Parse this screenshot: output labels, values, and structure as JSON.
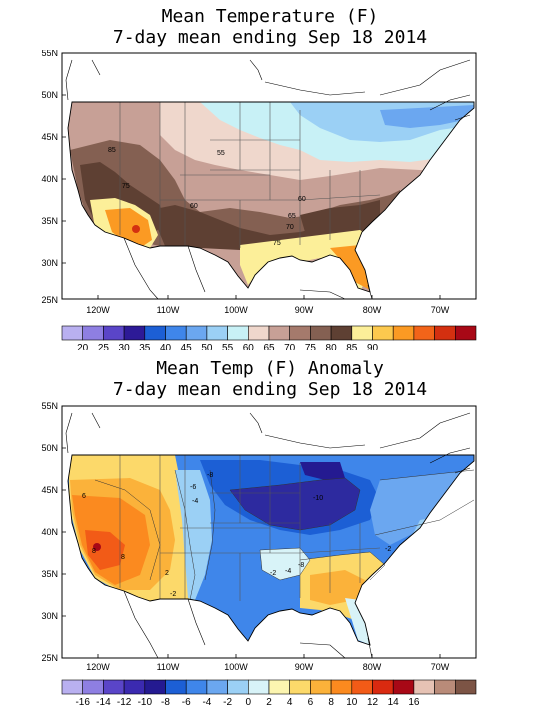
{
  "panels": [
    {
      "title_line1": "Mean Temperature (F)",
      "title_line2": "7-day mean ending Sep 18 2014",
      "lat_labels": [
        "55N",
        "50N",
        "45N",
        "40N",
        "35N",
        "30N",
        "25N"
      ],
      "lon_labels": [
        "120W",
        "110W",
        "100W",
        "90W",
        "80W",
        "70W"
      ],
      "colorbar": {
        "colors": [
          "#b9b0f0",
          "#8e7fe2",
          "#5a45c8",
          "#2d1a97",
          "#1c5fd5",
          "#3f86ea",
          "#6ba7f0",
          "#9bd0f5",
          "#c8f1f6",
          "#efd7cc",
          "#c7a096",
          "#a57a6c",
          "#846052",
          "#5e4033",
          "#fcef99",
          "#fcc94e",
          "#fb9a23",
          "#f26419",
          "#d43010",
          "#a80816"
        ],
        "labels": [
          "20",
          "25",
          "30",
          "35",
          "40",
          "45",
          "50",
          "55",
          "60",
          "65",
          "70",
          "75",
          "80",
          "85",
          "90"
        ]
      },
      "contour_labels": [
        "85",
        "55",
        "75",
        "60",
        "60",
        "65",
        "70",
        "75"
      ]
    },
    {
      "title_line1": "Mean Temp (F) Anomaly",
      "title_line2": "7-day mean ending Sep 18 2014",
      "lat_labels": [
        "55N",
        "50N",
        "45N",
        "40N",
        "35N",
        "30N",
        "25N"
      ],
      "lon_labels": [
        "120W",
        "110W",
        "100W",
        "90W",
        "80W",
        "70W"
      ],
      "colorbar": {
        "colors": [
          "#b9b0f0",
          "#8e7fe2",
          "#5a45c8",
          "#3b2ab0",
          "#241a91",
          "#1c5fd5",
          "#3f86ea",
          "#6ba7f0",
          "#9bd0f5",
          "#d8f3f8",
          "#fcf5b0",
          "#fcd96a",
          "#fbb23a",
          "#fb8a1f",
          "#f25b17",
          "#d92a10",
          "#a80816",
          "#e6c2b4",
          "#b98b79",
          "#7c5445"
        ],
        "labels": [
          "-16",
          "-14",
          "-12",
          "-10",
          "-8",
          "-6",
          "-4",
          "-2",
          "0",
          "2",
          "4",
          "6",
          "8",
          "10",
          "12",
          "14",
          "16"
        ]
      },
      "contour_labels": [
        "6",
        "8",
        "-8",
        "-6",
        "-4",
        "-10",
        "-2",
        "-4",
        "-8",
        "-2",
        "-2",
        "8",
        "2"
      ]
    }
  ]
}
